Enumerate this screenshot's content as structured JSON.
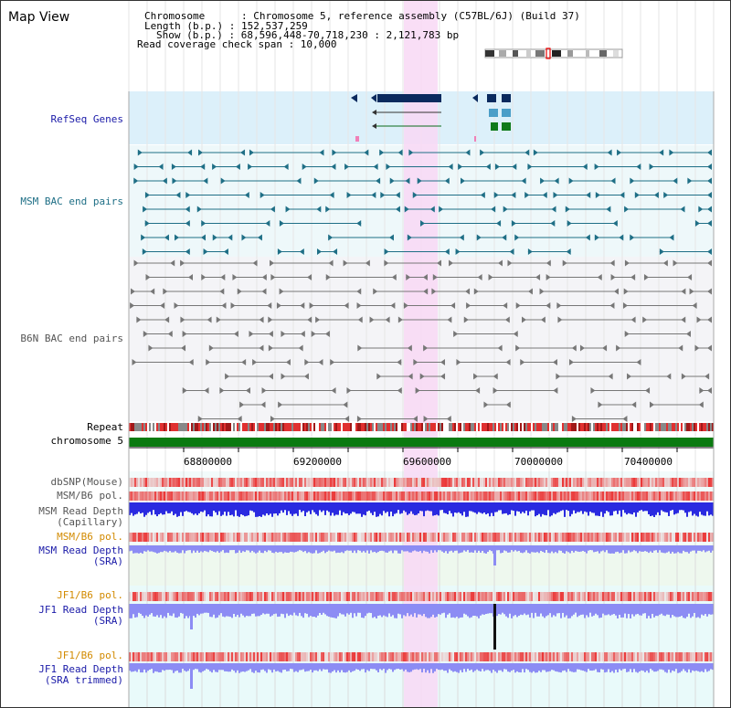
{
  "title": "Map View",
  "info": {
    "chromosome_line": "Chromosome      : Chromosome 5, reference assembly (C57BL/6J) (Build 37)",
    "length_line": "Length (b.p.) : 152,537,259",
    "show_line": "Show (b.p.) : 68,596,448-70,718,230 : 2,121,783 bp",
    "coverage_line": "Read coverage check span : 10,000"
  },
  "tracks": {
    "refseq": "RefSeq Genes",
    "msm_bac": "MSM BAC end pairs",
    "b6n_bac": "B6N BAC end pairs",
    "repeat": "Repeat",
    "chromosome": "chromosome 5",
    "dbsnp": "dbSNP(Mouse)",
    "msm_b6_pol_1": "MSM/B6 pol.",
    "msm_depth_cap_1": "MSM Read Depth",
    "msm_depth_cap_2": "(Capillary)",
    "msm_b6_pol_2": "MSM/B6 pol.",
    "msm_depth_sra_1": "MSM Read Depth",
    "msm_depth_sra_2": "(SRA)",
    "jf1_b6_pol_1": "JF1/B6 pol.",
    "jf1_depth_sra_1": "JF1 Read Depth",
    "jf1_depth_sra_2": "(SRA)",
    "jf1_b6_pol_2": "JF1/B6 pol.",
    "jf1_depth_trim_1": "JF1 Read Depth",
    "jf1_depth_trim_2": "(SRA trimmed)"
  },
  "axis_ticks": [
    "68800000",
    "69200000",
    "69600000",
    "70000000",
    "70400000"
  ],
  "colors": {
    "highlight": "#f8d8f4",
    "refseq_bg": "#dcf0fa",
    "gene_dark": "#0a2a5e",
    "gene_light": "#4a9ec8",
    "gene_green": "#0f7a1a",
    "msm_bac": "#1f6f86",
    "b6n_bac": "#777777",
    "chromosome": "#0a7a10",
    "depth_blue": "#2a2ae0",
    "depth_light": "#8c8cf4",
    "pol_red": "#e44848"
  }
}
